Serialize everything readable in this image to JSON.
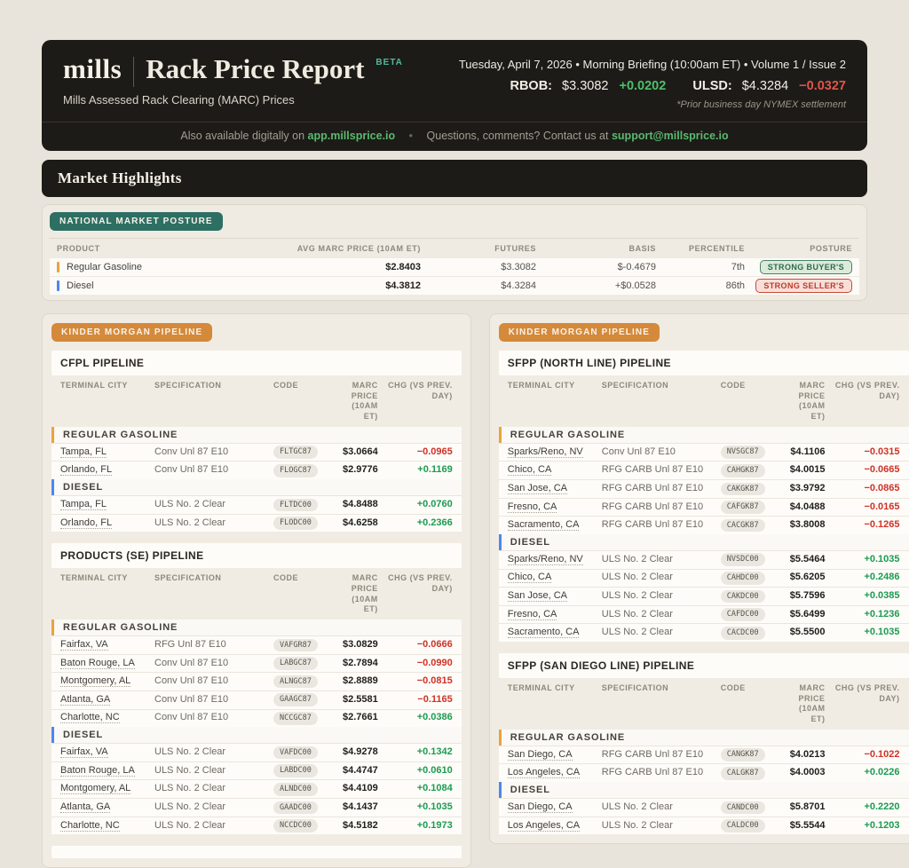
{
  "header": {
    "brand": "mills",
    "title": "Rack Price Report",
    "beta": "BETA",
    "subtitle": "Mills Assessed Rack Clearing (MARC) Prices",
    "dateline": "Tuesday, April 7, 2026 • Morning Briefing (10:00am ET) • Volume 1 / Issue 2",
    "rbob_label": "RBOB:",
    "rbob_price": "$3.3082",
    "rbob_chg": "+0.0202",
    "ulsd_label": "ULSD:",
    "ulsd_price": "$4.3284",
    "ulsd_chg": "−0.0327",
    "settlement_note": "*Prior business day NYMEX settlement",
    "footer": {
      "available_text": "Also available digitally on",
      "app_link": "app.millsprice.io",
      "bullet": "•",
      "contact_text": "Questions, comments? Contact us at",
      "contact_link": "support@millsprice.io"
    }
  },
  "section_title": "Market Highlights",
  "accents": {
    "gasoline": "#E8A33D",
    "diesel": "#4C86F2"
  },
  "posture": {
    "badge": "NATIONAL MARKET POSTURE",
    "columns": [
      "PRODUCT",
      "AVG MARC PRICE (10AM ET)",
      "FUTURES",
      "BASIS",
      "PERCENTILE",
      "POSTURE"
    ],
    "rows": [
      {
        "product": "Regular Gasoline",
        "accent": "#E8A33D",
        "avg": "$2.8403",
        "futures": "$3.3082",
        "basis": "$-0.4679",
        "percentile": "7th",
        "posture": "STRONG BUYER'S",
        "posture_type": "buyer"
      },
      {
        "product": "Diesel",
        "accent": "#4C86F2",
        "avg": "$4.3812",
        "futures": "$4.3284",
        "basis": "+$0.0528",
        "percentile": "86th",
        "posture": "STRONG SELLER'S",
        "posture_type": "seller"
      }
    ]
  },
  "pipeline_columns": {
    "city": "TERMINAL CITY",
    "spec": "SPECIFICATION",
    "code": "CODE",
    "price": "MARC PRICE (10AM ET)",
    "chg": "CHG (VS PREV. DAY)"
  },
  "cards": [
    {
      "badge": "KINDER MORGAN PIPELINE",
      "truncated": true,
      "tables": [
        {
          "title": "CFPL PIPELINE",
          "groups": [
            {
              "name": "REGULAR GASOLINE",
              "type": "gasoline",
              "rows": [
                {
                  "city": "Tampa, FL",
                  "spec": "Conv Unl 87 E10",
                  "code": "FLTGC87",
                  "price": "$3.0664",
                  "chg": "−0.0965"
                },
                {
                  "city": "Orlando, FL",
                  "spec": "Conv Unl 87 E10",
                  "code": "FLOGC87",
                  "price": "$2.9776",
                  "chg": "+0.1169"
                }
              ]
            },
            {
              "name": "DIESEL",
              "type": "diesel",
              "rows": [
                {
                  "city": "Tampa, FL",
                  "spec": "ULS No. 2 Clear",
                  "code": "FLTDC00",
                  "price": "$4.8488",
                  "chg": "+0.0760"
                },
                {
                  "city": "Orlando, FL",
                  "spec": "ULS No. 2 Clear",
                  "code": "FLODC00",
                  "price": "$4.6258",
                  "chg": "+0.2366"
                }
              ]
            }
          ]
        },
        {
          "title": "PRODUCTS (SE) PIPELINE",
          "groups": [
            {
              "name": "REGULAR GASOLINE",
              "type": "gasoline",
              "rows": [
                {
                  "city": "Fairfax, VA",
                  "spec": "RFG Unl 87 E10",
                  "code": "VAFGR87",
                  "price": "$3.0829",
                  "chg": "−0.0666"
                },
                {
                  "city": "Baton Rouge, LA",
                  "spec": "Conv Unl 87 E10",
                  "code": "LABGC87",
                  "price": "$2.7894",
                  "chg": "−0.0990"
                },
                {
                  "city": "Montgomery, AL",
                  "spec": "Conv Unl 87 E10",
                  "code": "ALNGC87",
                  "price": "$2.8889",
                  "chg": "−0.0815"
                },
                {
                  "city": "Atlanta, GA",
                  "spec": "Conv Unl 87 E10",
                  "code": "GAAGC87",
                  "price": "$2.5581",
                  "chg": "−0.1165"
                },
                {
                  "city": "Charlotte, NC",
                  "spec": "Conv Unl 87 E10",
                  "code": "NCCGC87",
                  "price": "$2.7661",
                  "chg": "+0.0386"
                }
              ]
            },
            {
              "name": "DIESEL",
              "type": "diesel",
              "rows": [
                {
                  "city": "Fairfax, VA",
                  "spec": "ULS No. 2 Clear",
                  "code": "VAFDC00",
                  "price": "$4.9278",
                  "chg": "+0.1342"
                },
                {
                  "city": "Baton Rouge, LA",
                  "spec": "ULS No. 2 Clear",
                  "code": "LABDC00",
                  "price": "$4.4747",
                  "chg": "+0.0610"
                },
                {
                  "city": "Montgomery, AL",
                  "spec": "ULS No. 2 Clear",
                  "code": "ALNDC00",
                  "price": "$4.4109",
                  "chg": "+0.1084"
                },
                {
                  "city": "Atlanta, GA",
                  "spec": "ULS No. 2 Clear",
                  "code": "GAADC00",
                  "price": "$4.1437",
                  "chg": "+0.1035"
                },
                {
                  "city": "Charlotte, NC",
                  "spec": "ULS No. 2 Clear",
                  "code": "NCCDC00",
                  "price": "$4.5182",
                  "chg": "+0.1973"
                }
              ]
            }
          ]
        }
      ]
    },
    {
      "badge": "KINDER MORGAN PIPELINE",
      "truncated": false,
      "tables": [
        {
          "title": "SFPP (NORTH LINE) PIPELINE",
          "groups": [
            {
              "name": "REGULAR GASOLINE",
              "type": "gasoline",
              "rows": [
                {
                  "city": "Sparks/Reno, NV",
                  "spec": "Conv Unl 87 E10",
                  "code": "NVSGC87",
                  "price": "$4.1106",
                  "chg": "−0.0315"
                },
                {
                  "city": "Chico, CA",
                  "spec": "RFG CARB Unl 87 E10",
                  "code": "CAHGK87",
                  "price": "$4.0015",
                  "chg": "−0.0665"
                },
                {
                  "city": "San Jose, CA",
                  "spec": "RFG CARB Unl 87 E10",
                  "code": "CAKGK87",
                  "price": "$3.9792",
                  "chg": "−0.0865"
                },
                {
                  "city": "Fresno, CA",
                  "spec": "RFG CARB Unl 87 E10",
                  "code": "CAFGK87",
                  "price": "$4.0488",
                  "chg": "−0.0165"
                },
                {
                  "city": "Sacramento, CA",
                  "spec": "RFG CARB Unl 87 E10",
                  "code": "CACGK87",
                  "price": "$3.8008",
                  "chg": "−0.1265"
                }
              ]
            },
            {
              "name": "DIESEL",
              "type": "diesel",
              "rows": [
                {
                  "city": "Sparks/Reno, NV",
                  "spec": "ULS No. 2 Clear",
                  "code": "NVSDC00",
                  "price": "$5.5464",
                  "chg": "+0.1035"
                },
                {
                  "city": "Chico, CA",
                  "spec": "ULS No. 2 Clear",
                  "code": "CAHDC00",
                  "price": "$5.6205",
                  "chg": "+0.2486"
                },
                {
                  "city": "San Jose, CA",
                  "spec": "ULS No. 2 Clear",
                  "code": "CAKDC00",
                  "price": "$5.7596",
                  "chg": "+0.0385"
                },
                {
                  "city": "Fresno, CA",
                  "spec": "ULS No. 2 Clear",
                  "code": "CAFDC00",
                  "price": "$5.6499",
                  "chg": "+0.1236"
                },
                {
                  "city": "Sacramento, CA",
                  "spec": "ULS No. 2 Clear",
                  "code": "CACDC00",
                  "price": "$5.5500",
                  "chg": "+0.1035"
                }
              ]
            }
          ]
        },
        {
          "title": "SFPP (SAN DIEGO LINE) PIPELINE",
          "groups": [
            {
              "name": "REGULAR GASOLINE",
              "type": "gasoline",
              "rows": [
                {
                  "city": "San Diego, CA",
                  "spec": "RFG CARB Unl 87 E10",
                  "code": "CANGK87",
                  "price": "$4.0213",
                  "chg": "−0.1022"
                },
                {
                  "city": "Los Angeles, CA",
                  "spec": "RFG CARB Unl 87 E10",
                  "code": "CALGK87",
                  "price": "$4.0003",
                  "chg": "+0.0226"
                }
              ]
            },
            {
              "name": "DIESEL",
              "type": "diesel",
              "rows": [
                {
                  "city": "San Diego, CA",
                  "spec": "ULS No. 2 Clear",
                  "code": "CANDC00",
                  "price": "$5.8701",
                  "chg": "+0.2220"
                },
                {
                  "city": "Los Angeles, CA",
                  "spec": "ULS No. 2 Clear",
                  "code": "CALDC00",
                  "price": "$5.5544",
                  "chg": "+0.1203"
                }
              ]
            }
          ]
        }
      ]
    }
  ]
}
